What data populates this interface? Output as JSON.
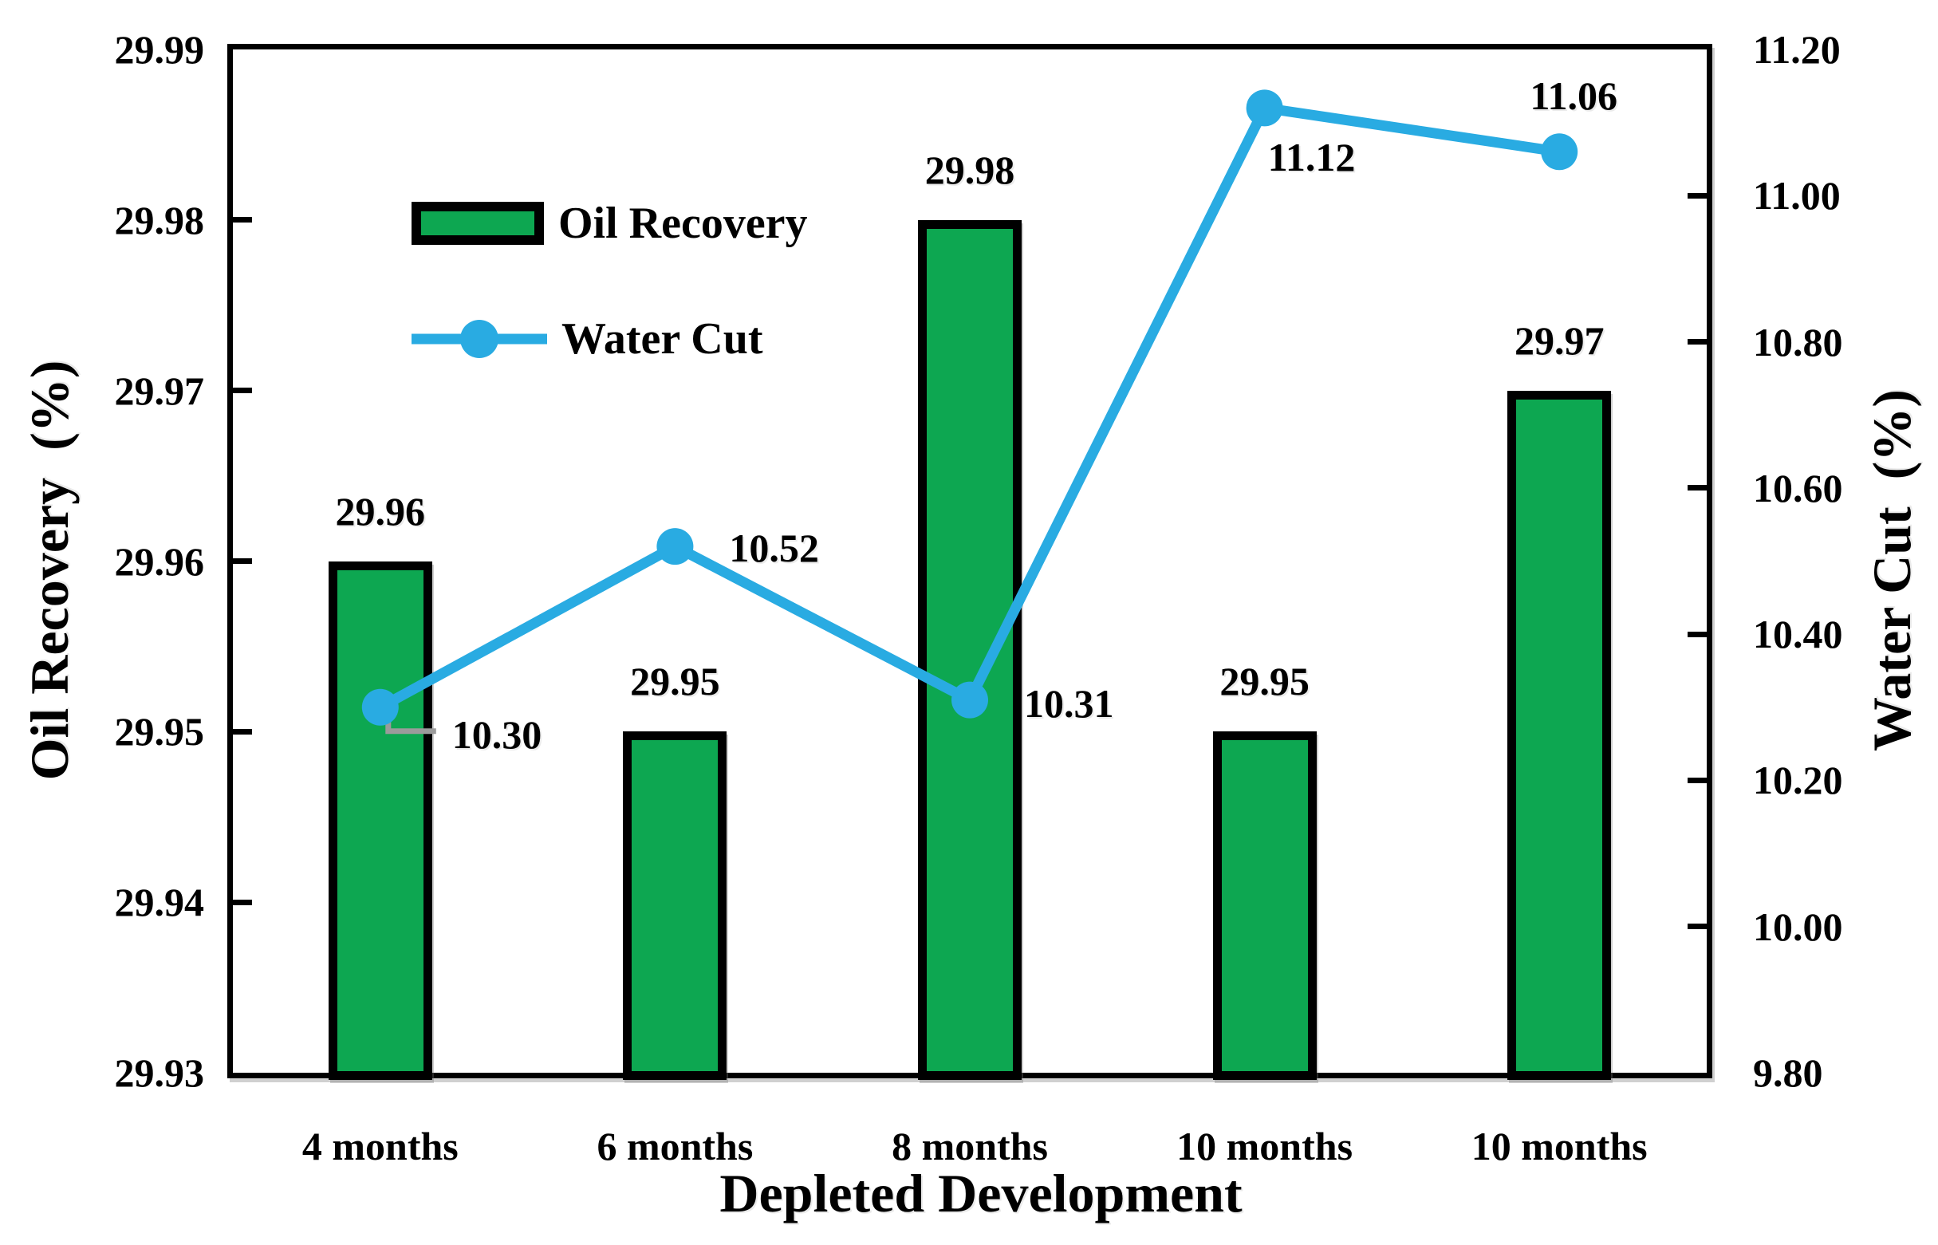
{
  "chart_data": {
    "type": "bar+line",
    "categories": [
      "4 months",
      "6 months",
      "8 months",
      "10 months",
      "10 months"
    ],
    "series": [
      {
        "name": "Oil Recovery",
        "type": "bar",
        "axis": "left",
        "color": "#0DA751",
        "values": [
          29.96,
          29.95,
          29.98,
          29.95,
          29.97
        ],
        "data_labels": [
          "29.96",
          "29.95",
          "29.98",
          "29.95",
          "29.97"
        ]
      },
      {
        "name": "Water Cut",
        "type": "line",
        "axis": "right",
        "color": "#29ABE2",
        "values": [
          10.3,
          10.52,
          10.31,
          11.12,
          11.06
        ],
        "data_labels": [
          "10.30",
          "10.52",
          "10.31",
          "11.12",
          "11.06"
        ]
      }
    ],
    "left_axis": {
      "label": "Oil Recovery  (%)",
      "min": 29.93,
      "max": 29.99,
      "tick_step": 0.01,
      "tick_labels": [
        "29.99",
        "29.98",
        "29.97",
        "29.96",
        "29.95",
        "29.94",
        "29.93"
      ]
    },
    "right_axis": {
      "label": "Water Cut  (%)",
      "min": 9.8,
      "max": 11.2,
      "tick_step": 0.2,
      "tick_labels": [
        "11.20",
        "11.00",
        "10.80",
        "10.60",
        "10.40",
        "10.20",
        "10.00",
        "9.80"
      ]
    },
    "x_label": "Depleted Development",
    "legend": [
      "Oil Recovery",
      "Water Cut"
    ],
    "legend_position": "top-left-inside",
    "grid": false,
    "colors": {
      "bar_fill": "#0DA751",
      "bar_border": "#000000",
      "line": "#29ABE2",
      "leader_line": "#9B9B9B",
      "axis": "#000000",
      "background": "#FFFFFF"
    }
  }
}
